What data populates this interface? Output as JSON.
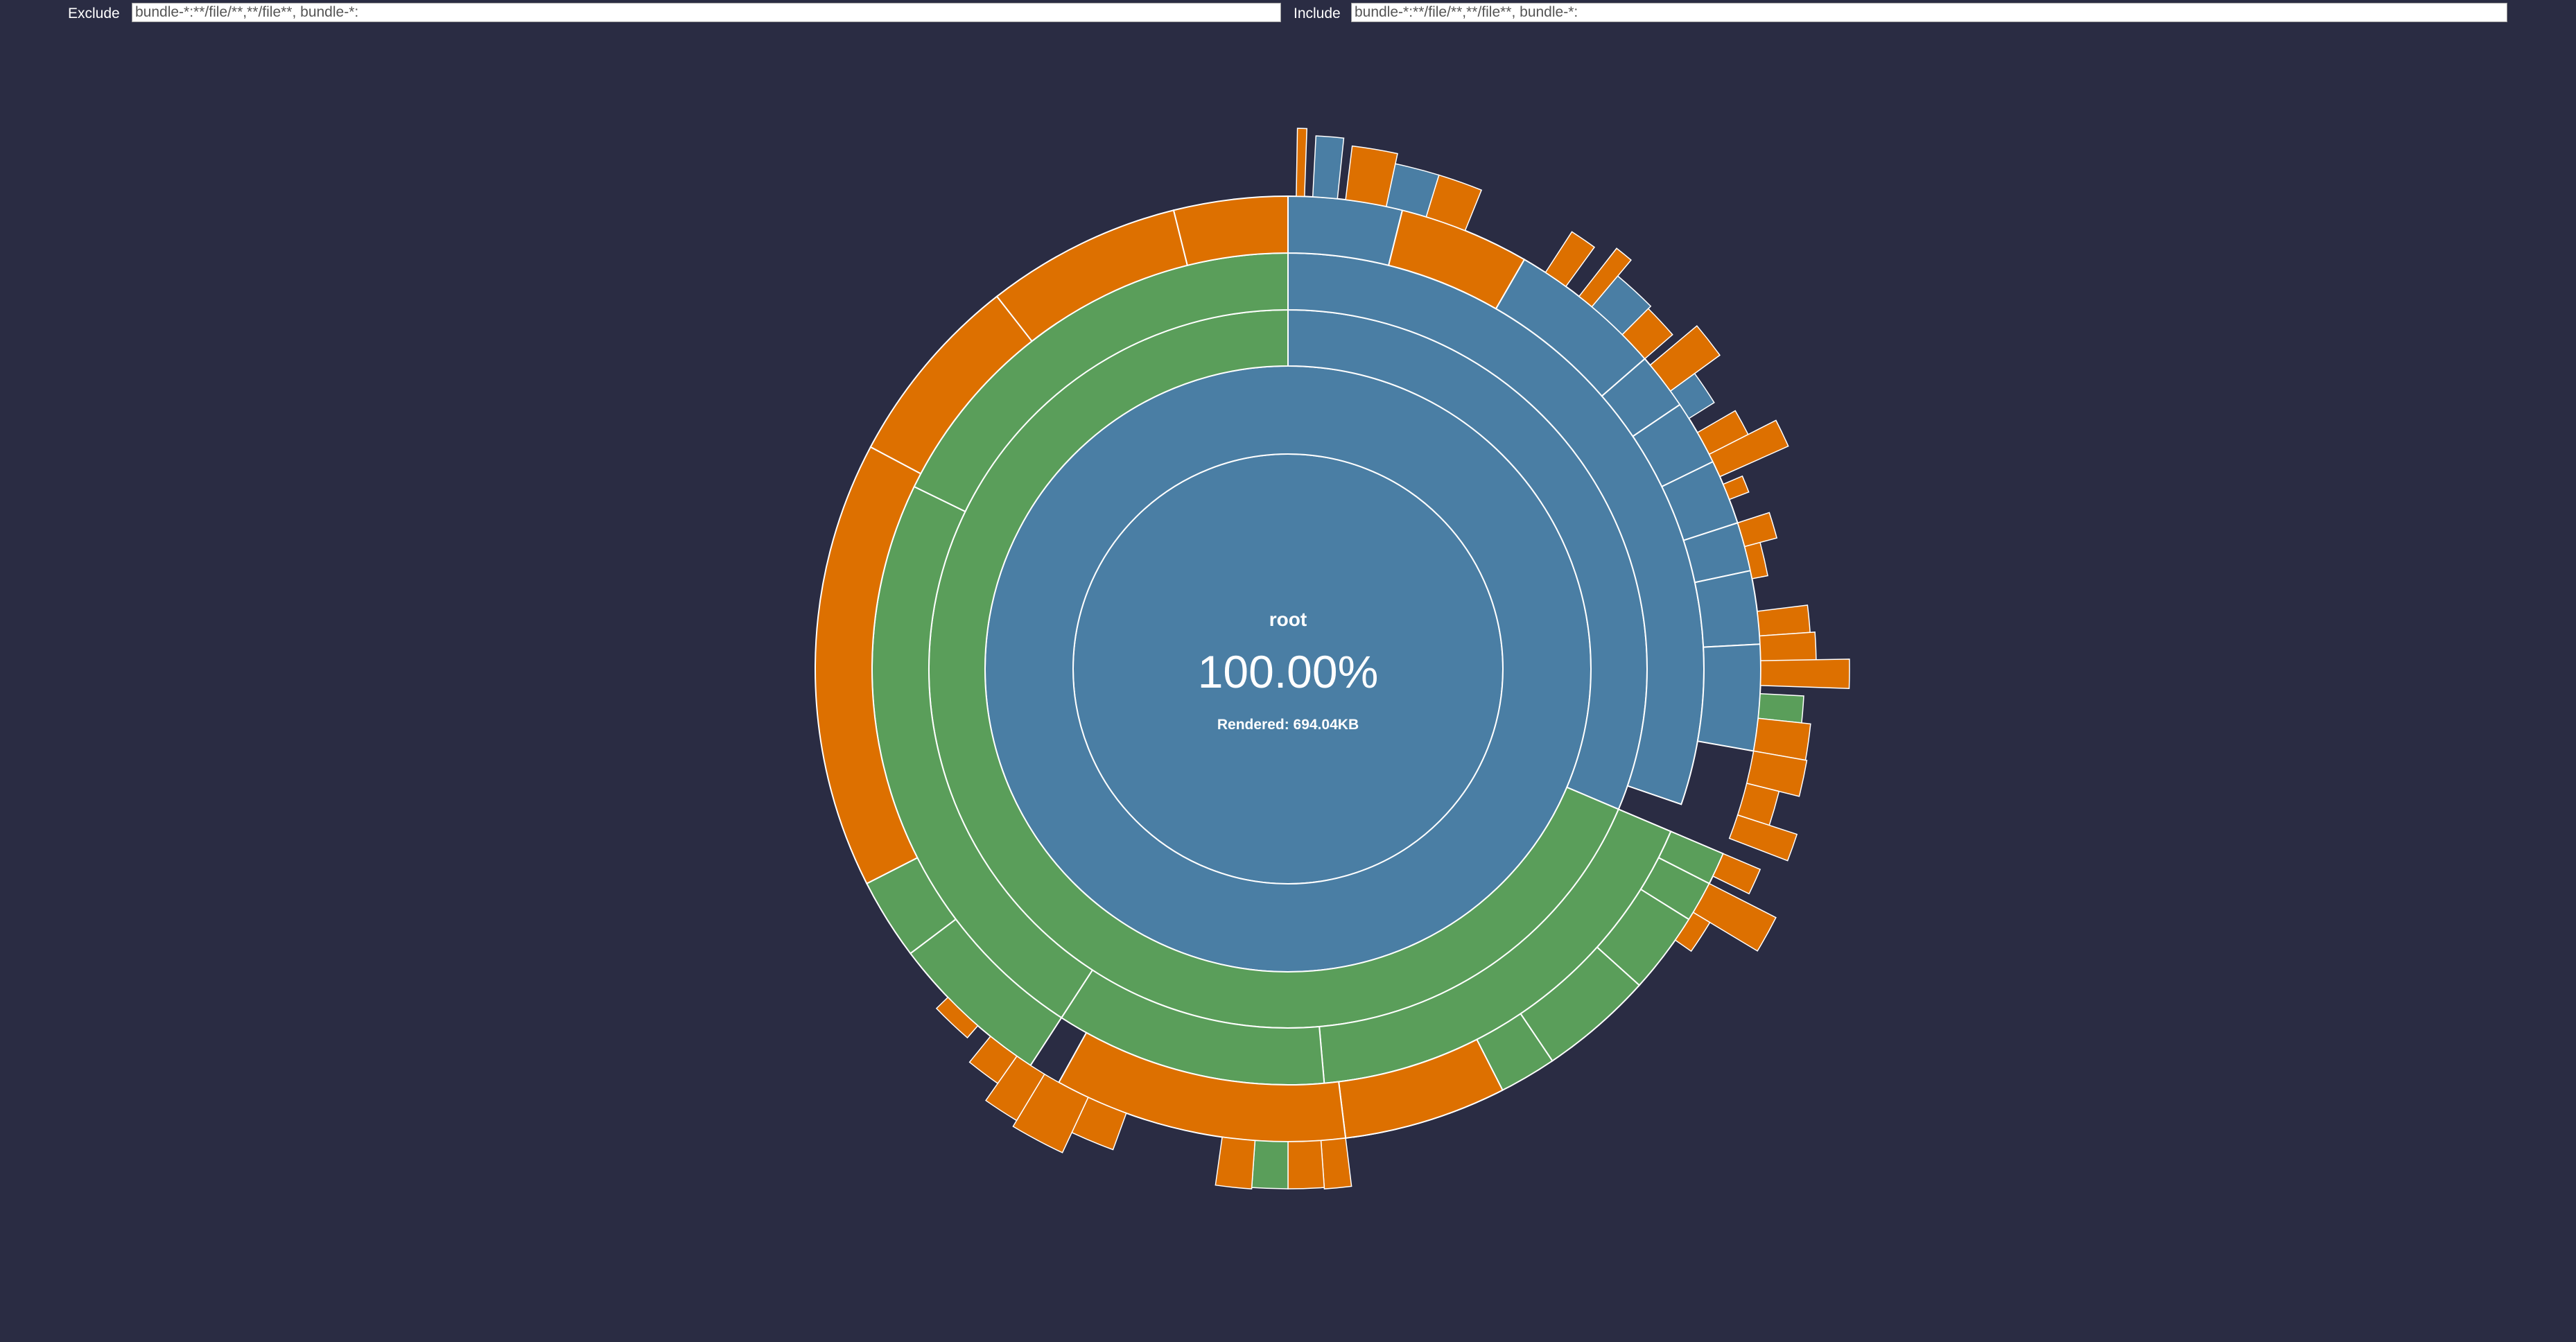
{
  "filters": {
    "exclude_label": "Exclude",
    "exclude_value": "bundle-*:**/file/**,**/file**, bundle-*:",
    "include_label": "Include",
    "include_value": "bundle-*:**/file/**,**/file**, bundle-*:"
  },
  "colors": {
    "background": "#2a2c43",
    "blue": "#4a7ea4",
    "green": "#5a9e5a",
    "orange": "#dd7000",
    "stroke": "#ffffff"
  },
  "center": {
    "title": "root",
    "percent": "100.00%",
    "rendered": "Rendered: 694.04KB"
  },
  "chart_data": {
    "type": "sunburst",
    "title": "",
    "center_label": "root",
    "total": "694.04KB",
    "rings": [
      {
        "level": 1,
        "segments": [
          {
            "color": "blue",
            "start_deg": 0,
            "end_deg": 360
          }
        ]
      },
      {
        "level": 2,
        "segments": [
          {
            "color": "blue",
            "start_deg": 0,
            "end_deg": 360
          }
        ]
      },
      {
        "level": 3,
        "segments": [
          {
            "color": "blue",
            "start_deg": 0,
            "end_deg": 113
          },
          {
            "color": "green",
            "start_deg": 113,
            "end_deg": 360
          }
        ]
      },
      {
        "level": 4,
        "segments": [
          {
            "color": "blue",
            "start_deg": 0,
            "end_deg": 109
          },
          {
            "color": "green",
            "start_deg": 113,
            "end_deg": 175
          },
          {
            "color": "green",
            "start_deg": 175,
            "end_deg": 213
          },
          {
            "color": "green",
            "start_deg": 213,
            "end_deg": 296
          },
          {
            "color": "green",
            "start_deg": 296,
            "end_deg": 360
          }
        ]
      },
      {
        "level": 5,
        "segments": [
          {
            "color": "blue",
            "start_deg": 0,
            "end_deg": 14
          },
          {
            "color": "orange",
            "start_deg": 14,
            "end_deg": 30
          },
          {
            "color": "blue",
            "start_deg": 30,
            "end_deg": 49
          },
          {
            "color": "blue",
            "start_deg": 49,
            "end_deg": 56
          },
          {
            "color": "blue",
            "start_deg": 56,
            "end_deg": 64
          },
          {
            "color": "blue",
            "start_deg": 64,
            "end_deg": 72
          },
          {
            "color": "blue",
            "start_deg": 72,
            "end_deg": 78
          },
          {
            "color": "blue",
            "start_deg": 78,
            "end_deg": 87
          },
          {
            "color": "blue",
            "start_deg": 87,
            "end_deg": 100
          },
          {
            "color": "green",
            "start_deg": 113,
            "end_deg": 117
          },
          {
            "color": "green",
            "start_deg": 117,
            "end_deg": 122
          },
          {
            "color": "green",
            "start_deg": 122,
            "end_deg": 132
          },
          {
            "color": "green",
            "start_deg": 132,
            "end_deg": 146
          },
          {
            "color": "green",
            "start_deg": 146,
            "end_deg": 160
          },
          {
            "color": "green",
            "start_deg": 160,
            "end_deg": 172
          },
          {
            "color": "orange",
            "start_deg": 153,
            "end_deg": 173
          },
          {
            "color": "orange",
            "start_deg": 173,
            "end_deg": 209
          },
          {
            "color": "green",
            "start_deg": 213,
            "end_deg": 233
          },
          {
            "color": "green",
            "start_deg": 233,
            "end_deg": 243
          },
          {
            "color": "orange",
            "start_deg": 243,
            "end_deg": 298
          },
          {
            "color": "orange",
            "start_deg": 298,
            "end_deg": 322
          },
          {
            "color": "orange",
            "start_deg": 322,
            "end_deg": 346
          },
          {
            "color": "orange",
            "start_deg": 346,
            "end_deg": 360
          }
        ]
      }
    ]
  }
}
